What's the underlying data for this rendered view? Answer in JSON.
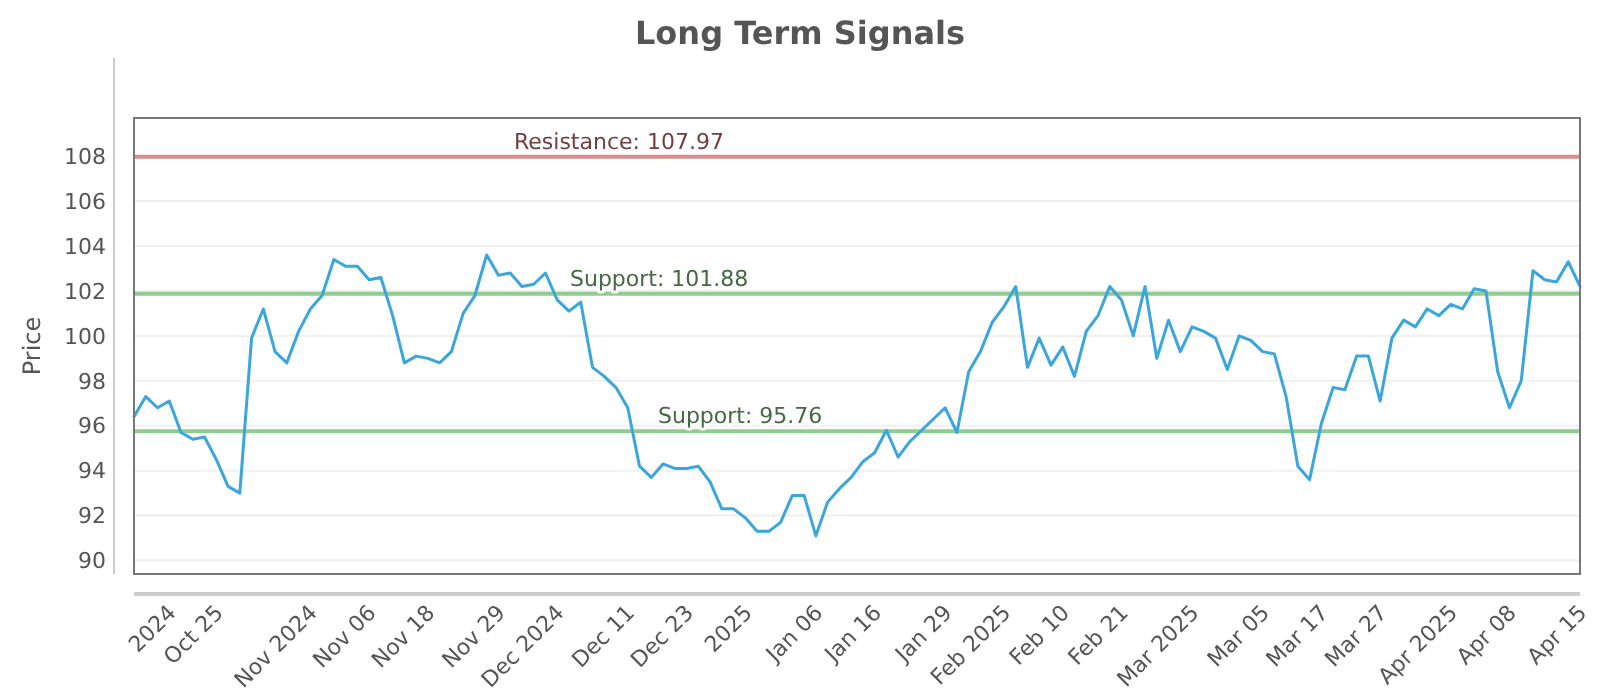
{
  "chart_data": {
    "type": "line",
    "title": "Long Term Signals",
    "ylabel": "Price",
    "categories": [
      null,
      null,
      null,
      "2024",
      null,
      null,
      null,
      "Oct 25",
      null,
      null,
      null,
      null,
      null,
      null,
      null,
      "Nov 2024",
      null,
      null,
      null,
      null,
      "Nov 06",
      null,
      null,
      null,
      null,
      "Nov 18",
      null,
      null,
      null,
      null,
      null,
      "Nov 29",
      null,
      null,
      null,
      null,
      "Dec 2024",
      null,
      null,
      null,
      null,
      null,
      "Dec 11",
      null,
      null,
      null,
      null,
      "Dec 23",
      null,
      null,
      null,
      null,
      "2025",
      null,
      null,
      null,
      null,
      null,
      "Jan 06",
      null,
      null,
      null,
      null,
      "Jan 16",
      null,
      null,
      null,
      null,
      null,
      "Jan 29",
      null,
      null,
      null,
      null,
      "Feb 2025",
      null,
      null,
      null,
      null,
      "Feb 10",
      null,
      null,
      null,
      null,
      "Feb 21",
      null,
      null,
      null,
      null,
      null,
      "Mar 2025",
      null,
      null,
      null,
      null,
      null,
      "Mar 05",
      null,
      null,
      null,
      null,
      "Mar 17",
      null,
      null,
      null,
      null,
      "Mar 27",
      null,
      null,
      null,
      null,
      null,
      "Apr 2025",
      null,
      null,
      null,
      null,
      "Apr 08",
      null,
      null,
      null,
      null,
      null,
      "Apr 15"
    ],
    "series": [
      {
        "color": "#3aa6dc",
        "values": [
          96.4,
          97.3,
          96.8,
          97.1,
          95.7,
          95.4,
          95.5,
          94.5,
          93.3,
          93.0,
          99.9,
          101.2,
          99.3,
          98.8,
          100.2,
          101.2,
          101.8,
          103.4,
          103.1,
          103.1,
          102.5,
          102.6,
          100.9,
          98.8,
          99.1,
          99.0,
          98.8,
          99.3,
          101.0,
          101.8,
          103.6,
          102.7,
          102.8,
          102.2,
          102.3,
          102.8,
          101.6,
          101.1,
          101.5,
          98.6,
          98.2,
          97.7,
          96.8,
          94.2,
          93.7,
          94.3,
          94.1,
          94.1,
          94.2,
          93.5,
          92.3,
          92.3,
          91.9,
          91.3,
          91.3,
          91.7,
          92.9,
          92.9,
          91.1,
          92.6,
          93.2,
          93.7,
          94.4,
          94.8,
          95.8,
          94.6,
          95.3,
          95.8,
          96.3,
          96.8,
          95.7,
          98.4,
          99.3,
          100.6,
          101.3,
          102.2,
          98.6,
          99.9,
          98.7,
          99.5,
          98.2,
          100.2,
          100.9,
          102.2,
          101.6,
          100.0,
          102.2,
          99.0,
          100.7,
          99.3,
          100.4,
          100.2,
          99.9,
          98.5,
          100.0,
          99.8,
          99.3,
          99.2,
          97.3,
          94.2,
          93.6,
          96.1,
          97.7,
          97.6,
          99.1,
          99.1,
          97.1,
          99.9,
          100.7,
          100.4,
          101.2,
          100.9,
          101.4,
          101.2,
          102.1,
          102.0,
          98.4,
          96.8,
          98.0,
          102.9,
          102.5,
          102.4,
          103.3,
          102.2
        ]
      }
    ],
    "ylim": [
      89.4,
      109.7
    ],
    "yticks": [
      90,
      92,
      94,
      96,
      98,
      100,
      102,
      104,
      106,
      108
    ],
    "grid": "y",
    "ref_lines": [
      {
        "axis": "y",
        "value": 107.97,
        "label": "Resistance: 107.97",
        "color": "#d98c8c"
      },
      {
        "axis": "y",
        "value": 101.88,
        "label": "Support: 101.88",
        "color": "#8fcc8f"
      },
      {
        "axis": "y",
        "value": 95.76,
        "label": "Support: 95.76",
        "color": "#8fcc8f"
      }
    ]
  }
}
